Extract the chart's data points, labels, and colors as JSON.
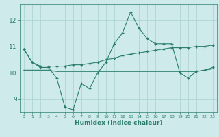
{
  "xlabel": "Humidex (Indice chaleur)",
  "x": [
    0,
    1,
    2,
    3,
    4,
    5,
    6,
    7,
    8,
    9,
    10,
    11,
    12,
    13,
    14,
    15,
    16,
    17,
    18,
    19,
    20,
    21,
    22,
    23
  ],
  "line1": [
    10.9,
    10.4,
    10.2,
    10.2,
    9.8,
    8.7,
    8.6,
    9.6,
    9.4,
    10.0,
    10.4,
    11.1,
    11.5,
    12.3,
    11.7,
    11.3,
    11.1,
    11.1,
    11.1,
    10.0,
    9.8,
    10.05,
    10.1,
    10.2
  ],
  "line2": [
    10.9,
    10.4,
    10.25,
    10.25,
    10.25,
    10.25,
    10.3,
    10.3,
    10.35,
    10.4,
    10.5,
    10.55,
    10.65,
    10.7,
    10.75,
    10.8,
    10.85,
    10.9,
    10.95,
    10.95,
    10.95,
    11.0,
    11.0,
    11.05
  ],
  "line3": [
    10.1,
    10.1,
    10.1,
    10.1,
    10.05,
    10.05,
    10.05,
    10.05,
    10.05,
    10.05,
    10.05,
    10.05,
    10.05,
    10.05,
    10.05,
    10.05,
    10.05,
    10.05,
    10.05,
    10.05,
    10.05,
    10.05,
    10.1,
    10.15
  ],
  "color": "#2a7d6e",
  "bg_color": "#ceeaea",
  "grid_color": "#aacfcf",
  "ylim": [
    8.5,
    12.6
  ],
  "yticks": [
    9,
    10,
    11,
    12
  ],
  "xticks": [
    0,
    1,
    2,
    3,
    4,
    5,
    6,
    7,
    8,
    9,
    10,
    11,
    12,
    13,
    14,
    15,
    16,
    17,
    18,
    19,
    20,
    21,
    22,
    23
  ]
}
